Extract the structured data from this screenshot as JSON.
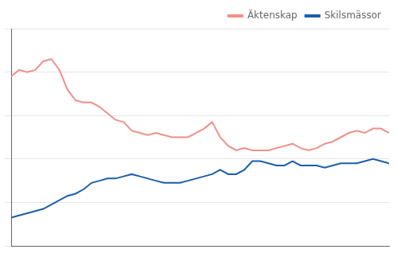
{
  "chart_data": {
    "type": "line",
    "x": [
      1965,
      1966,
      1967,
      1968,
      1969,
      1970,
      1971,
      1972,
      1973,
      1974,
      1975,
      1976,
      1977,
      1978,
      1979,
      1980,
      1981,
      1982,
      1983,
      1984,
      1985,
      1986,
      1987,
      1988,
      1989,
      1990,
      1991,
      1992,
      1993,
      1994,
      1995,
      1996,
      1997,
      1998,
      1999,
      2000,
      2001,
      2002,
      2003,
      2004,
      2005,
      2006,
      2007,
      2008,
      2009,
      2010,
      2011,
      2012
    ],
    "series": [
      {
        "name": "Äktenskap",
        "color": "#f0908a",
        "values": [
          7.8,
          8.1,
          8.0,
          8.1,
          8.5,
          8.6,
          8.1,
          7.2,
          6.7,
          6.6,
          6.6,
          6.4,
          6.1,
          5.8,
          5.7,
          5.3,
          5.2,
          5.1,
          5.2,
          5.1,
          5.0,
          5.0,
          5.0,
          5.2,
          5.4,
          5.7,
          5.0,
          4.6,
          4.4,
          4.5,
          4.4,
          4.4,
          4.4,
          4.5,
          4.6,
          4.7,
          4.5,
          4.4,
          4.5,
          4.7,
          4.8,
          5.0,
          5.2,
          5.3,
          5.2,
          5.4,
          5.4,
          5.2
        ]
      },
      {
        "name": "Skilsmässor",
        "color": "#1a5ea8",
        "values": [
          1.3,
          1.4,
          1.5,
          1.6,
          1.7,
          1.9,
          2.1,
          2.3,
          2.4,
          2.6,
          2.9,
          3.0,
          3.1,
          3.1,
          3.2,
          3.3,
          3.2,
          3.1,
          3.0,
          2.9,
          2.9,
          2.9,
          3.0,
          3.1,
          3.2,
          3.3,
          3.5,
          3.3,
          3.3,
          3.5,
          3.9,
          3.9,
          3.8,
          3.7,
          3.7,
          3.9,
          3.7,
          3.7,
          3.7,
          3.6,
          3.7,
          3.8,
          3.8,
          3.8,
          3.9,
          4.0,
          3.9,
          3.8
        ]
      }
    ],
    "xlim": [
      1965,
      2012
    ],
    "ylim": [
      0,
      10
    ],
    "yticks": [
      0,
      2,
      4,
      6,
      8,
      10
    ],
    "grid": "y",
    "legend": "upper right",
    "tick_labels": false
  }
}
